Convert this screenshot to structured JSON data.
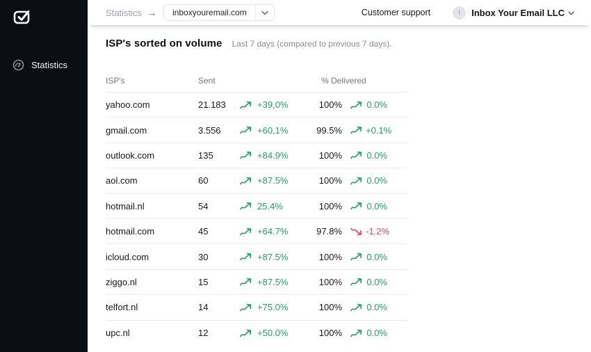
{
  "colors": {
    "green": "#22a167",
    "red": "#e94364",
    "sidebar_bg": "#0b0e12"
  },
  "sidebar": {
    "logo": "inbox-your-email-logo",
    "items": [
      {
        "label": "Statistics",
        "icon": "gauge-icon"
      }
    ]
  },
  "topbar": {
    "breadcrumb": "Statistics",
    "breadcrumb_arrow": "→",
    "domain_selector": {
      "value": "inboxyouremail.com"
    },
    "customer_support_label": "Customer support",
    "account": {
      "avatar_initial": "I",
      "name": "Inbox Your Email LLC"
    }
  },
  "main": {
    "title": "ISP's sorted on volume",
    "subtitle": "Last 7 days (compared to previous 7 days)."
  },
  "table": {
    "columns": [
      "ISP's",
      "Sent",
      "% Delivered"
    ],
    "rows": [
      {
        "isp": "yahoo.com",
        "sent": "21.183",
        "sent_trend": "up",
        "sent_change": "+39,0%",
        "delivered": "100%",
        "delivered_trend": "up",
        "delivered_change": "0.0%"
      },
      {
        "isp": "gmail.com",
        "sent": "3.556",
        "sent_trend": "up",
        "sent_change": "+60,1%",
        "delivered": "99.5%",
        "delivered_trend": "up",
        "delivered_change": "+0.1%"
      },
      {
        "isp": "outlook.com",
        "sent": "135",
        "sent_trend": "up",
        "sent_change": "+84.9%",
        "delivered": "100%",
        "delivered_trend": "up",
        "delivered_change": "0.0%"
      },
      {
        "isp": "aol.com",
        "sent": "60",
        "sent_trend": "up",
        "sent_change": "+87.5%",
        "delivered": "100%",
        "delivered_trend": "up",
        "delivered_change": "0.0%"
      },
      {
        "isp": "hotmail.nl",
        "sent": "54",
        "sent_trend": "up",
        "sent_change": "25.4%",
        "delivered": "100%",
        "delivered_trend": "up",
        "delivered_change": "0.0%"
      },
      {
        "isp": "hotmail.com",
        "sent": "45",
        "sent_trend": "up",
        "sent_change": "+64.7%",
        "delivered": "97.8%",
        "delivered_trend": "down",
        "delivered_change": "-1.2%"
      },
      {
        "isp": "icloud.com",
        "sent": "30",
        "sent_trend": "up",
        "sent_change": "+87.5%",
        "delivered": "100%",
        "delivered_trend": "up",
        "delivered_change": "0.0%"
      },
      {
        "isp": "ziggo.nl",
        "sent": "15",
        "sent_trend": "up",
        "sent_change": "+87.5%",
        "delivered": "100%",
        "delivered_trend": "up",
        "delivered_change": "0.0%"
      },
      {
        "isp": "telfort.nl",
        "sent": "14",
        "sent_trend": "up",
        "sent_change": "+75.0%",
        "delivered": "100%",
        "delivered_trend": "up",
        "delivered_change": "0.0%"
      },
      {
        "isp": "upc.nl",
        "sent": "12",
        "sent_trend": "up",
        "sent_change": "+50.0%",
        "delivered": "100%",
        "delivered_trend": "up",
        "delivered_change": "0.0%"
      }
    ]
  }
}
